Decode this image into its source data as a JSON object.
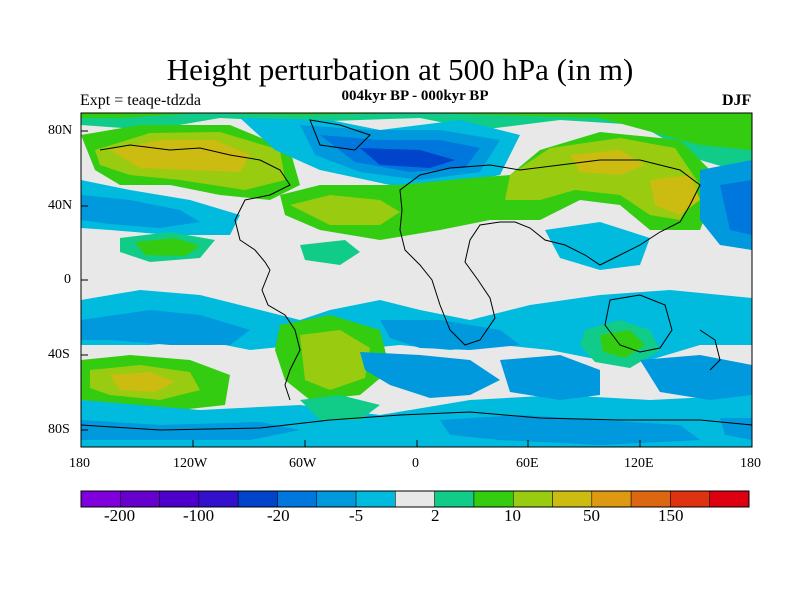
{
  "title": "Height perturbation at 500 hPa (in m)",
  "subtitle": "004kyr BP - 000kyr BP",
  "left_label": "Expt = teaqe-tdzda",
  "right_label": "DJF",
  "lat_ticks": [
    "80N",
    "40N",
    "0",
    "40S",
    "80S"
  ],
  "lon_ticks": [
    "180",
    "120W",
    "60W",
    "0",
    "60E",
    "120E",
    "180"
  ],
  "colorbar": {
    "colors": [
      "#7f00dd",
      "#6600cc",
      "#4d00cc",
      "#3311cc",
      "#0044cc",
      "#0077dd",
      "#0099dd",
      "#00bbdd",
      "#e8e8e8",
      "#11cc88",
      "#33cc11",
      "#99cc11",
      "#ccbb11",
      "#dd9911",
      "#dd6611",
      "#dd3311",
      "#dd0011"
    ],
    "labels": [
      "-200",
      "-100",
      "-20",
      "-5",
      "2",
      "10",
      "50",
      "150"
    ]
  }
}
